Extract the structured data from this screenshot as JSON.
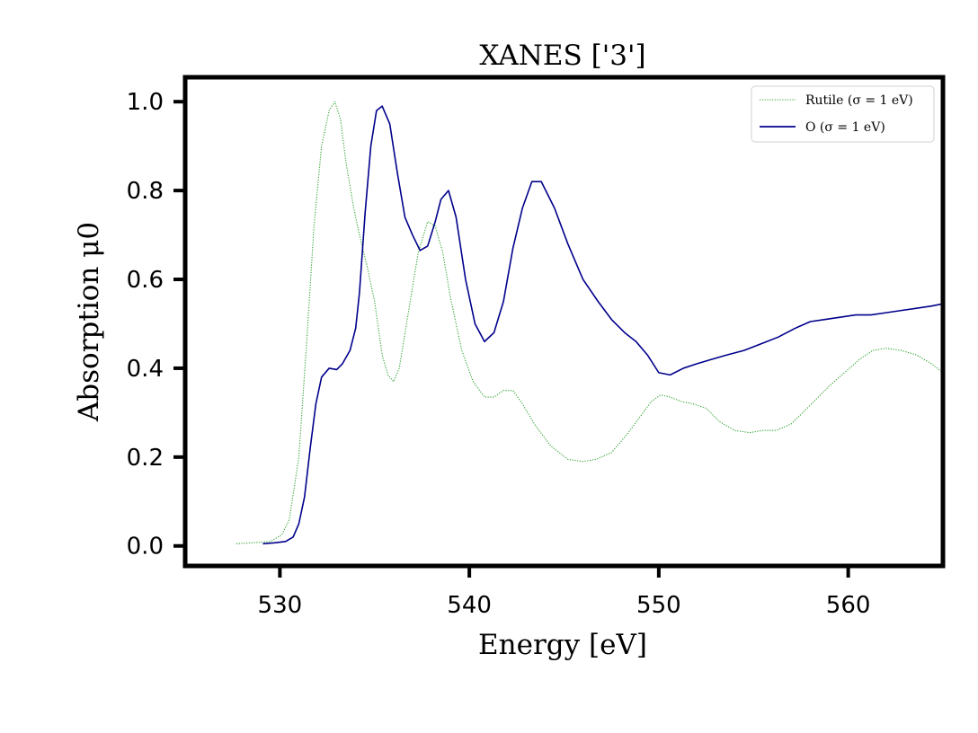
{
  "chart_data": {
    "type": "line",
    "title": "XANES ['3']",
    "xlabel": "Energy [eV]",
    "ylabel": "Absorption μ0",
    "xlim": [
      525,
      565
    ],
    "ylim": [
      -0.045,
      1.055
    ],
    "xticks": [
      530,
      540,
      550,
      560
    ],
    "yticks": [
      0.0,
      0.2,
      0.4,
      0.6,
      0.8,
      1.0
    ],
    "xtick_labels": [
      "530",
      "540",
      "550",
      "560"
    ],
    "ytick_labels": [
      "0.0",
      "0.2",
      "0.4",
      "0.6",
      "0.8",
      "1.0"
    ],
    "grid": false,
    "legend_position": "top-right",
    "series": [
      {
        "name": "Rutile (σ = 1 eV)",
        "color": "#2ca02c",
        "style": "dotted",
        "x": [
          527.7,
          528.5,
          529.5,
          530.1,
          530.5,
          531.0,
          531.4,
          531.8,
          532.2,
          532.6,
          532.9,
          533.2,
          533.5,
          533.9,
          534.2,
          534.6,
          535.0,
          535.4,
          535.7,
          536.0,
          536.3,
          536.8,
          537.3,
          537.8,
          538.2,
          538.6,
          539.0,
          539.6,
          540.2,
          540.8,
          541.3,
          541.8,
          542.3,
          542.8,
          543.5,
          544.3,
          545.2,
          546.0,
          546.7,
          547.5,
          548.3,
          549.0,
          549.6,
          550.1,
          550.6,
          551.2,
          551.8,
          552.5,
          553.2,
          554.0,
          554.8,
          555.5,
          556.2,
          557.0,
          557.6,
          558.3,
          559.0,
          559.8,
          560.6,
          561.3,
          562.0,
          562.8,
          563.6,
          564.4,
          565.0
        ],
        "y": [
          0.005,
          0.007,
          0.01,
          0.025,
          0.06,
          0.2,
          0.45,
          0.72,
          0.9,
          0.98,
          1.0,
          0.96,
          0.86,
          0.76,
          0.7,
          0.63,
          0.55,
          0.43,
          0.385,
          0.37,
          0.4,
          0.53,
          0.66,
          0.73,
          0.72,
          0.66,
          0.56,
          0.44,
          0.37,
          0.335,
          0.335,
          0.35,
          0.35,
          0.32,
          0.27,
          0.225,
          0.195,
          0.19,
          0.195,
          0.21,
          0.25,
          0.29,
          0.325,
          0.34,
          0.335,
          0.325,
          0.32,
          0.31,
          0.28,
          0.26,
          0.255,
          0.26,
          0.26,
          0.275,
          0.3,
          0.33,
          0.36,
          0.39,
          0.42,
          0.44,
          0.445,
          0.44,
          0.43,
          0.41,
          0.39
        ]
      },
      {
        "name": "O (σ = 1 eV)",
        "color": "#00008b",
        "style": "solid",
        "x": [
          529.1,
          529.7,
          530.3,
          530.7,
          531.0,
          531.3,
          531.6,
          531.9,
          532.2,
          532.6,
          533.0,
          533.3,
          533.7,
          534.0,
          534.2,
          534.5,
          534.8,
          535.1,
          535.4,
          535.8,
          536.2,
          536.6,
          537.0,
          537.4,
          537.8,
          538.2,
          538.5,
          538.9,
          539.3,
          539.8,
          540.3,
          540.8,
          541.3,
          541.8,
          542.3,
          542.8,
          543.3,
          543.8,
          544.5,
          545.2,
          546.0,
          546.8,
          547.5,
          548.2,
          548.8,
          549.4,
          550.0,
          550.6,
          551.3,
          552.0,
          552.8,
          553.6,
          554.5,
          555.4,
          556.3,
          557.2,
          558.0,
          558.8,
          559.6,
          560.4,
          561.2,
          562.0,
          562.8,
          563.6,
          564.4,
          565.0
        ],
        "y": [
          0.005,
          0.007,
          0.01,
          0.02,
          0.05,
          0.11,
          0.22,
          0.32,
          0.38,
          0.4,
          0.397,
          0.41,
          0.44,
          0.49,
          0.57,
          0.75,
          0.9,
          0.98,
          0.99,
          0.95,
          0.84,
          0.74,
          0.7,
          0.665,
          0.675,
          0.73,
          0.78,
          0.8,
          0.74,
          0.6,
          0.5,
          0.46,
          0.48,
          0.55,
          0.67,
          0.76,
          0.82,
          0.82,
          0.76,
          0.68,
          0.6,
          0.55,
          0.51,
          0.48,
          0.46,
          0.43,
          0.39,
          0.385,
          0.4,
          0.41,
          0.42,
          0.43,
          0.44,
          0.455,
          0.47,
          0.49,
          0.505,
          0.51,
          0.515,
          0.52,
          0.52,
          0.525,
          0.53,
          0.535,
          0.54,
          0.545
        ]
      }
    ]
  }
}
